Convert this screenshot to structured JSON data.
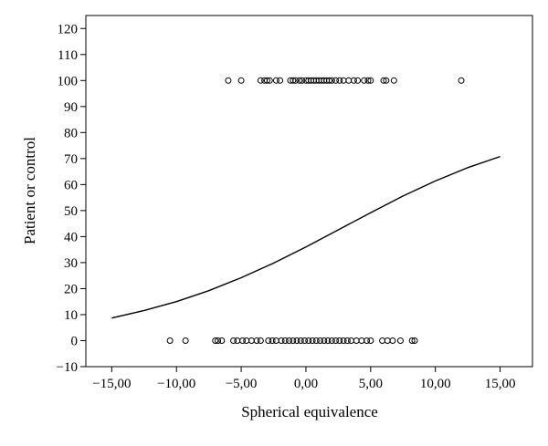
{
  "chart_data": {
    "type": "scatter",
    "title": "",
    "xlabel": "Spherical equivalence",
    "ylabel": "Patient or control",
    "xlim": [
      -17,
      17.5
    ],
    "ylim": [
      -10,
      125
    ],
    "xticks": [
      -15,
      -10,
      -5,
      0,
      5,
      10,
      15
    ],
    "xtick_labels": [
      "−15,00",
      "−10,00",
      "−5,00",
      "0,00",
      "5,00",
      "10,00",
      "15,00"
    ],
    "yticks": [
      -10,
      0,
      10,
      20,
      30,
      40,
      50,
      60,
      70,
      80,
      90,
      100,
      110,
      120
    ],
    "ytick_labels": [
      "−10",
      "0",
      "10",
      "20",
      "30",
      "40",
      "50",
      "60",
      "70",
      "80",
      "90",
      "100",
      "110",
      "120"
    ],
    "grid": false,
    "legend": "none",
    "series": [
      {
        "kind": "points",
        "marker": "open-circle",
        "points": [
          {
            "x": -6.0,
            "y": 100
          },
          {
            "x": -5.0,
            "y": 100
          },
          {
            "x": -3.5,
            "y": 100
          },
          {
            "x": -3.2,
            "y": 100
          },
          {
            "x": -3.0,
            "y": 100
          },
          {
            "x": -2.8,
            "y": 100
          },
          {
            "x": -2.3,
            "y": 100
          },
          {
            "x": -2.0,
            "y": 100
          },
          {
            "x": -1.2,
            "y": 100
          },
          {
            "x": -1.0,
            "y": 100
          },
          {
            "x": -0.8,
            "y": 100
          },
          {
            "x": -0.5,
            "y": 100
          },
          {
            "x": -0.3,
            "y": 100
          },
          {
            "x": 0.0,
            "y": 100
          },
          {
            "x": 0.2,
            "y": 100
          },
          {
            "x": 0.4,
            "y": 100
          },
          {
            "x": 0.6,
            "y": 100
          },
          {
            "x": 0.8,
            "y": 100
          },
          {
            "x": 1.0,
            "y": 100
          },
          {
            "x": 1.2,
            "y": 100
          },
          {
            "x": 1.4,
            "y": 100
          },
          {
            "x": 1.6,
            "y": 100
          },
          {
            "x": 1.8,
            "y": 100
          },
          {
            "x": 2.0,
            "y": 100
          },
          {
            "x": 2.3,
            "y": 100
          },
          {
            "x": 2.6,
            "y": 100
          },
          {
            "x": 2.9,
            "y": 100
          },
          {
            "x": 3.3,
            "y": 100
          },
          {
            "x": 3.7,
            "y": 100
          },
          {
            "x": 4.0,
            "y": 100
          },
          {
            "x": 4.5,
            "y": 100
          },
          {
            "x": 4.8,
            "y": 100
          },
          {
            "x": 5.0,
            "y": 100
          },
          {
            "x": 6.0,
            "y": 100
          },
          {
            "x": 6.2,
            "y": 100
          },
          {
            "x": 6.8,
            "y": 100
          },
          {
            "x": 12.0,
            "y": 100
          },
          {
            "x": -10.5,
            "y": 0
          },
          {
            "x": -9.3,
            "y": 0
          },
          {
            "x": -7.0,
            "y": 0
          },
          {
            "x": -6.8,
            "y": 0
          },
          {
            "x": -6.5,
            "y": 0
          },
          {
            "x": -5.6,
            "y": 0
          },
          {
            "x": -5.3,
            "y": 0
          },
          {
            "x": -4.9,
            "y": 0
          },
          {
            "x": -4.6,
            "y": 0
          },
          {
            "x": -4.2,
            "y": 0
          },
          {
            "x": -3.8,
            "y": 0
          },
          {
            "x": -3.5,
            "y": 0
          },
          {
            "x": -2.9,
            "y": 0
          },
          {
            "x": -2.6,
            "y": 0
          },
          {
            "x": -2.3,
            "y": 0
          },
          {
            "x": -1.9,
            "y": 0
          },
          {
            "x": -1.6,
            "y": 0
          },
          {
            "x": -1.3,
            "y": 0
          },
          {
            "x": -1.0,
            "y": 0
          },
          {
            "x": -0.7,
            "y": 0
          },
          {
            "x": -0.4,
            "y": 0
          },
          {
            "x": -0.1,
            "y": 0
          },
          {
            "x": 0.2,
            "y": 0
          },
          {
            "x": 0.5,
            "y": 0
          },
          {
            "x": 0.8,
            "y": 0
          },
          {
            "x": 1.1,
            "y": 0
          },
          {
            "x": 1.4,
            "y": 0
          },
          {
            "x": 1.7,
            "y": 0
          },
          {
            "x": 2.0,
            "y": 0
          },
          {
            "x": 2.3,
            "y": 0
          },
          {
            "x": 2.6,
            "y": 0
          },
          {
            "x": 2.9,
            "y": 0
          },
          {
            "x": 3.2,
            "y": 0
          },
          {
            "x": 3.5,
            "y": 0
          },
          {
            "x": 3.9,
            "y": 0
          },
          {
            "x": 4.3,
            "y": 0
          },
          {
            "x": 4.7,
            "y": 0
          },
          {
            "x": 5.0,
            "y": 0
          },
          {
            "x": 5.9,
            "y": 0
          },
          {
            "x": 6.3,
            "y": 0
          },
          {
            "x": 6.7,
            "y": 0
          },
          {
            "x": 7.3,
            "y": 0
          },
          {
            "x": 8.2,
            "y": 0
          },
          {
            "x": 8.4,
            "y": 0
          }
        ]
      },
      {
        "kind": "line",
        "points": [
          {
            "x": -15,
            "y": 8.7
          },
          {
            "x": -12.5,
            "y": 11.6
          },
          {
            "x": -10,
            "y": 15.0
          },
          {
            "x": -7.5,
            "y": 19.2
          },
          {
            "x": -5,
            "y": 24.2
          },
          {
            "x": -2.5,
            "y": 29.8
          },
          {
            "x": 0,
            "y": 36.0
          },
          {
            "x": 2.5,
            "y": 42.6
          },
          {
            "x": 5,
            "y": 49.2
          },
          {
            "x": 7.5,
            "y": 55.6
          },
          {
            "x": 10,
            "y": 61.4
          },
          {
            "x": 12.5,
            "y": 66.5
          },
          {
            "x": 15,
            "y": 70.8
          }
        ]
      }
    ]
  }
}
